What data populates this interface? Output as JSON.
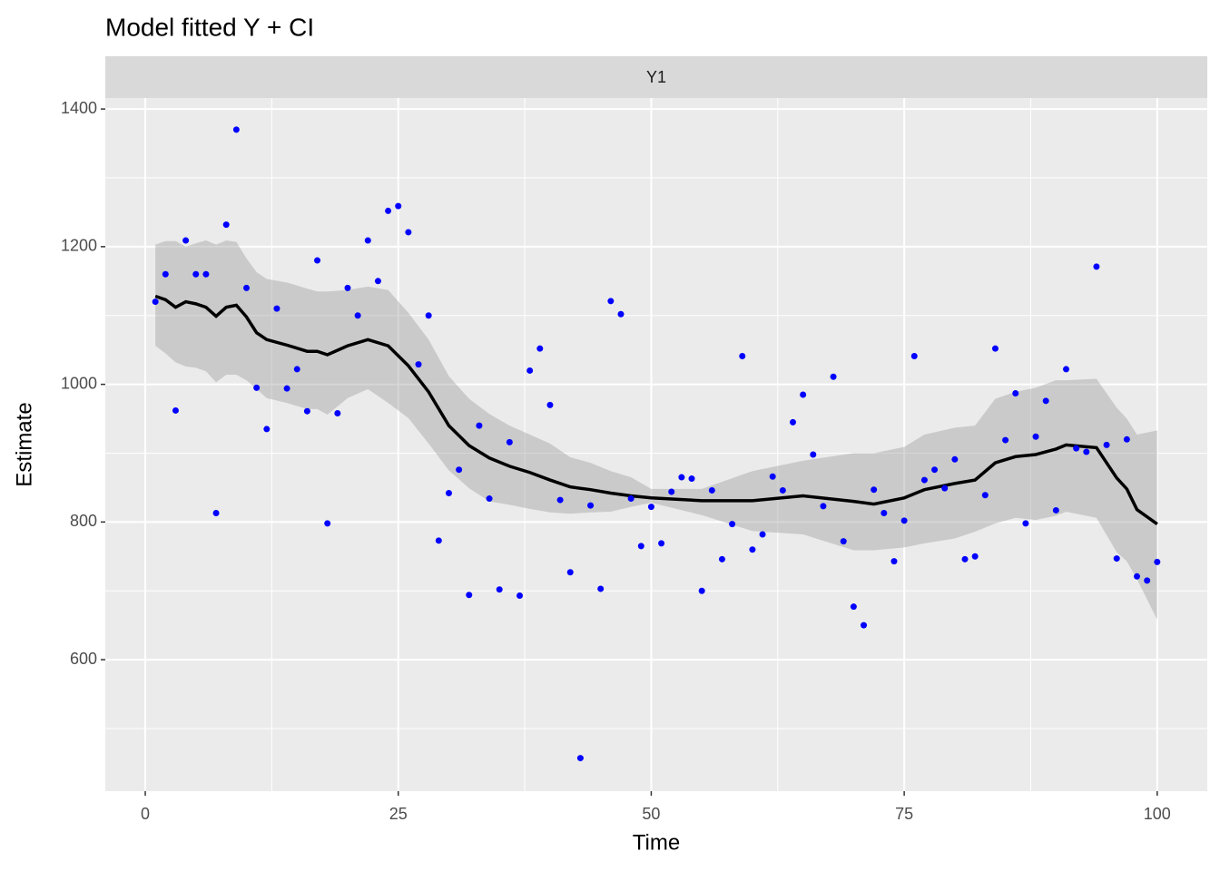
{
  "chart_data": {
    "type": "scatter",
    "title": "Model fitted Y + CI",
    "strip": "Y1",
    "x_label": "Time",
    "y_label": "Estimate",
    "xlim": [
      -3.95,
      104.95
    ],
    "ylim": [
      409,
      1416
    ],
    "xticks": [
      0,
      25,
      50,
      75,
      100
    ],
    "yticks": [
      600,
      800,
      1000,
      1200,
      1400
    ],
    "grid": true,
    "series": [
      {
        "type": "scatter",
        "color": "#0000ff",
        "x": [
          1,
          2,
          3,
          4,
          5,
          6,
          7,
          8,
          9,
          10,
          11,
          12,
          13,
          14,
          15,
          16,
          17,
          18,
          19,
          20,
          21,
          22,
          23,
          24,
          25,
          26,
          27,
          28,
          29,
          30,
          31,
          32,
          33,
          34,
          35,
          36,
          37,
          38,
          39,
          40,
          41,
          42,
          43,
          44,
          45,
          46,
          47,
          48,
          49,
          50,
          51,
          52,
          53,
          54,
          55,
          56,
          57,
          58,
          59,
          60,
          61,
          62,
          63,
          64,
          65,
          66,
          67,
          68,
          69,
          70,
          71,
          72,
          73,
          74,
          75,
          76,
          77,
          78,
          79,
          80,
          81,
          82,
          83,
          84,
          85,
          86,
          87,
          88,
          89,
          90,
          91,
          92,
          93,
          94,
          95,
          96,
          97,
          98,
          99,
          100
        ],
        "values": [
          1120,
          1160,
          962,
          1209,
          1160,
          1160,
          813,
          1232,
          1370,
          1140,
          995,
          935,
          1110,
          994,
          1022,
          961,
          1180,
          798,
          958,
          1140,
          1100,
          1209,
          1150,
          1252,
          1259,
          1221,
          1029,
          1100,
          773,
          842,
          876,
          694,
          940,
          834,
          702,
          916,
          693,
          1020,
          1052,
          970,
          832,
          727,
          457,
          824,
          703,
          1121,
          1102,
          834,
          765,
          822,
          769,
          844,
          865,
          863,
          700,
          846,
          746,
          797,
          1041,
          760,
          782,
          866,
          846,
          945,
          985,
          898,
          823,
          1011,
          772,
          677,
          650,
          847,
          813,
          743,
          802,
          1041,
          861,
          876,
          849,
          891,
          746,
          750,
          839,
          1052,
          919,
          987,
          798,
          924,
          976,
          817,
          1022,
          907,
          902,
          1171,
          912,
          747,
          920,
          721,
          715,
          742
        ]
      },
      {
        "type": "line",
        "color": "#000000",
        "band_color": "#999999",
        "x": [
          1,
          2,
          3,
          4,
          5,
          6,
          7,
          8,
          9,
          10,
          11,
          12,
          14,
          16,
          17,
          18,
          20,
          22,
          24,
          26,
          28,
          30,
          32,
          34,
          36,
          38,
          40,
          42,
          44,
          46,
          48,
          50,
          55,
          60,
          65,
          70,
          72,
          75,
          77,
          80,
          82,
          84,
          86,
          88,
          90,
          91,
          94,
          96,
          97,
          98,
          100
        ],
        "values": [
          1128,
          1123,
          1112,
          1120,
          1117,
          1112,
          1099,
          1112,
          1115,
          1098,
          1075,
          1065,
          1057,
          1048,
          1048,
          1043,
          1056,
          1065,
          1056,
          1027,
          989,
          940,
          911,
          893,
          881,
          872,
          861,
          851,
          847,
          842,
          838,
          835,
          831,
          831,
          838,
          830,
          826,
          835,
          847,
          856,
          861,
          886,
          895,
          898,
          906,
          912,
          908,
          864,
          848,
          818,
          797
        ],
        "upper": [
          1203,
          1208,
          1208,
          1200,
          1205,
          1209,
          1203,
          1209,
          1207,
          1183,
          1163,
          1153,
          1148,
          1139,
          1135,
          1135,
          1137,
          1142,
          1137,
          1104,
          1065,
          1012,
          979,
          957,
          940,
          927,
          914,
          894,
          886,
          874,
          865,
          848,
          848,
          874,
          889,
          900,
          900,
          909,
          927,
          937,
          940,
          979,
          989,
          995,
          1006,
          1006,
          1008,
          966,
          950,
          927,
          933
        ],
        "lower": [
          1056,
          1045,
          1032,
          1026,
          1024,
          1019,
          1003,
          1014,
          1014,
          1006,
          993,
          980,
          973,
          964,
          964,
          956,
          980,
          993,
          973,
          951,
          914,
          875,
          849,
          830,
          825,
          819,
          814,
          812,
          814,
          815,
          822,
          828,
          810,
          787,
          782,
          759,
          759,
          763,
          769,
          776,
          786,
          798,
          806,
          803,
          809,
          815,
          806,
          756,
          743,
          717,
          658
        ]
      }
    ]
  }
}
